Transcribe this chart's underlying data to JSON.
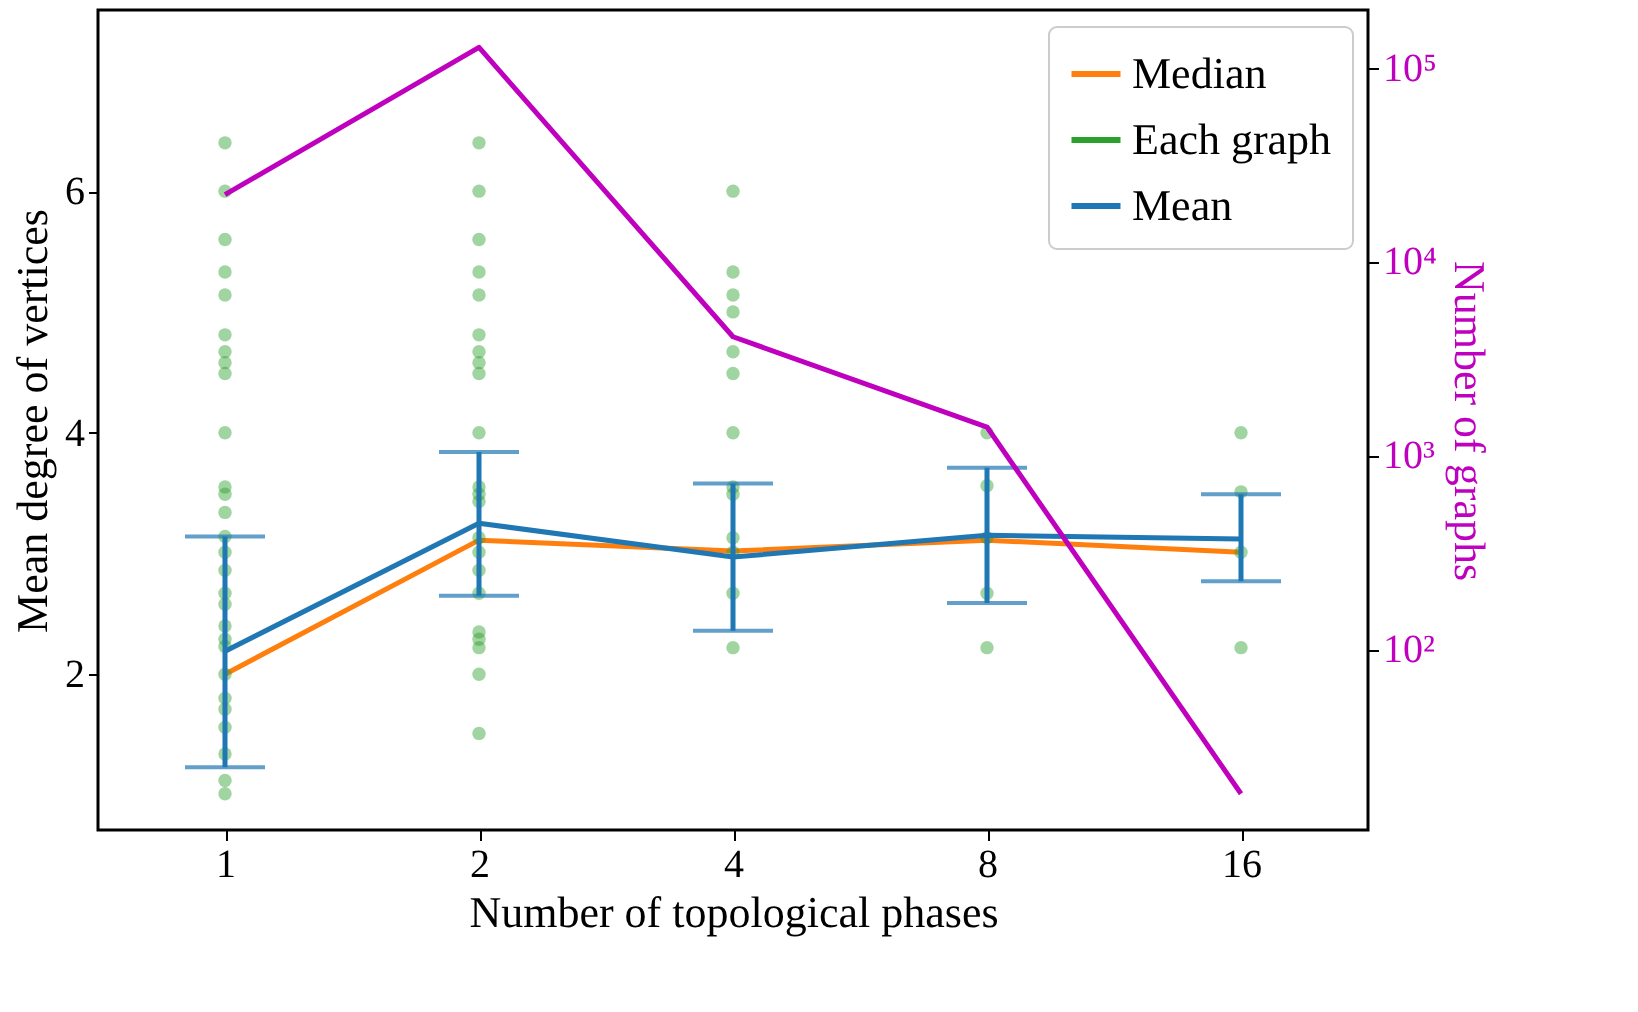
{
  "chart_data": {
    "type": "line",
    "xlabel": "Number of topological phases",
    "ylabel": "Mean degree of vertices",
    "y2label": "Number of graphs",
    "categories": [
      "1",
      "2",
      "4",
      "8",
      "16"
    ],
    "ylim": [
      0.71,
      7.5
    ],
    "yticks": [
      2,
      4,
      6
    ],
    "y2lim": [
      11.7,
      198000
    ],
    "y2ticks": [
      {
        "value": 100,
        "label": "10²"
      },
      {
        "value": 1000,
        "label": "10³"
      },
      {
        "value": 10000,
        "label": "10⁴"
      },
      {
        "value": 100000,
        "label": "10⁵"
      }
    ],
    "log": "y2",
    "grid": false,
    "legend": "top right",
    "series": [
      {
        "name": "Median",
        "color": "#ff7f0e",
        "values": [
          2.0,
          3.11,
          3.02,
          3.11,
          3.01
        ]
      },
      {
        "name": "Each graph",
        "type": "scatter",
        "color": "#2ca02c",
        "x": [
          "1",
          "1",
          "1",
          "1",
          "1",
          "1",
          "1",
          "1",
          "1",
          "1",
          "1",
          "1",
          "1",
          "1",
          "1",
          "1",
          "1",
          "1",
          "1",
          "1",
          "1",
          "1",
          "1",
          "1",
          "1",
          "1",
          "1",
          "1",
          "2",
          "2",
          "2",
          "2",
          "2",
          "2",
          "2",
          "2",
          "2",
          "2",
          "2",
          "2",
          "2",
          "2",
          "2",
          "2",
          "2",
          "2",
          "2",
          "2",
          "2",
          "2",
          "4",
          "4",
          "4",
          "4",
          "4",
          "4",
          "4",
          "4",
          "4",
          "4",
          "4",
          "4",
          "4",
          "8",
          "8",
          "8",
          "8",
          "8",
          "16",
          "16",
          "16",
          "16"
        ],
        "values": [
          6.4,
          6.0,
          5.6,
          5.33,
          5.14,
          4.81,
          4.67,
          4.58,
          4.49,
          4.0,
          3.55,
          3.49,
          3.34,
          3.14,
          3.01,
          2.86,
          2.67,
          2.58,
          2.4,
          2.29,
          2.23,
          2.0,
          1.8,
          1.71,
          1.56,
          1.34,
          1.12,
          1.01,
          6.4,
          6.0,
          5.6,
          5.33,
          5.14,
          4.81,
          4.67,
          4.58,
          4.49,
          4.0,
          3.55,
          3.49,
          3.43,
          3.13,
          3.01,
          2.86,
          2.67,
          2.35,
          2.29,
          2.22,
          2.0,
          1.51,
          6.0,
          5.33,
          5.14,
          5.0,
          4.67,
          4.49,
          4.0,
          3.55,
          3.49,
          3.13,
          3.01,
          2.67,
          2.22,
          4.0,
          3.56,
          3.13,
          2.67,
          2.22,
          4.0,
          3.51,
          3.01,
          2.22
        ]
      },
      {
        "name": "Mean",
        "color": "#1f77b4",
        "values": [
          2.19,
          3.25,
          2.97,
          3.15,
          3.12
        ],
        "errors": [
          [
            1.23,
            3.14
          ],
          [
            2.65,
            3.84
          ],
          [
            2.36,
            3.58
          ],
          [
            2.59,
            3.71
          ],
          [
            2.77,
            3.49
          ]
        ]
      },
      {
        "axis": "y2",
        "color": "#bf00bf",
        "values": [
          22100,
          127000,
          4090,
          1400,
          18
        ]
      }
    ]
  }
}
